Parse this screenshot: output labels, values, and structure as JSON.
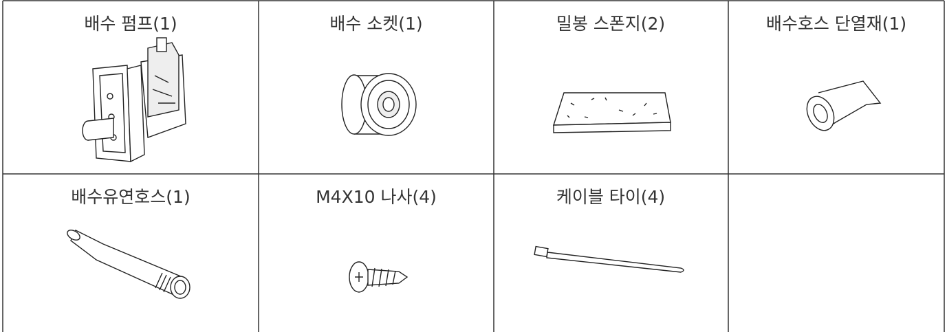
{
  "table": {
    "rows": [
      [
        "배수 펌프(1)",
        "배수 소켓(1)",
        "밀봉 스폰지(2)",
        "배수호스 단열재(1)"
      ],
      [
        "배수유연호스(1)",
        "M4X10 나사(4)",
        "케이블 타이(4)"
      ]
    ]
  }
}
